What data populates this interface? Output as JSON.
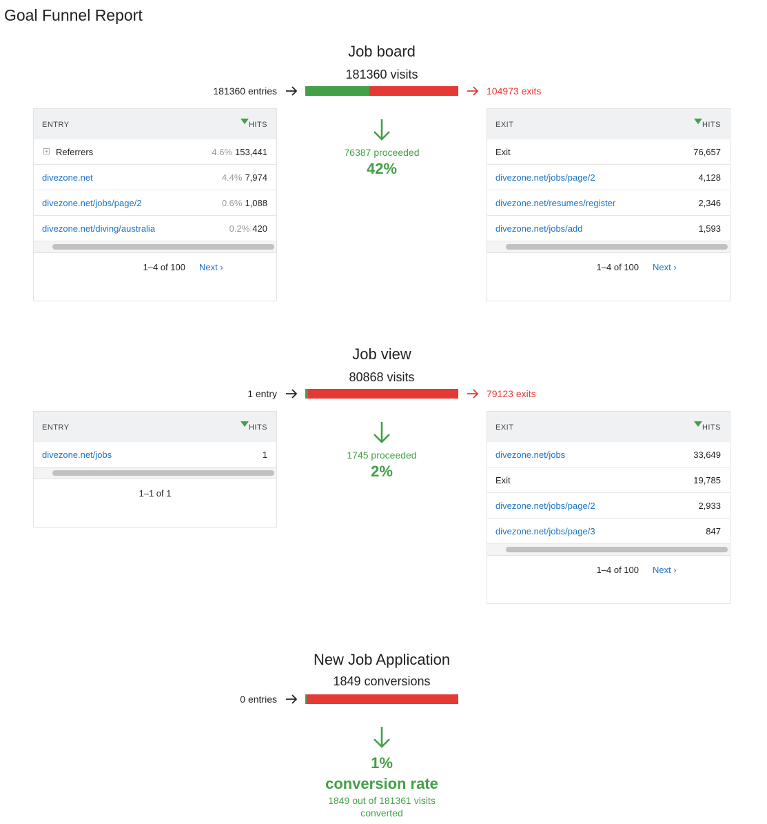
{
  "header": {
    "title": "Goal Funnel Report"
  },
  "steps": [
    {
      "title": "Job board",
      "visits": "181360 visits",
      "entries": "181360 entries",
      "exits": "104973 exits",
      "proceeded": "76387 proceeded",
      "rate": {
        "value": 42,
        "label": "42%"
      },
      "entry_table": {
        "columns": [
          "ENTRY",
          "HITS"
        ],
        "rows": [
          {
            "label": "Referrers",
            "link": false,
            "expandable": true,
            "share": "4.6%",
            "hits": "153,441"
          },
          {
            "label": "divezone.net",
            "link": true,
            "share": "4.4%",
            "hits": "7,974"
          },
          {
            "label": "divezone.net/jobs/page/2",
            "link": true,
            "share": "0.6%",
            "hits": "1,088"
          },
          {
            "label": "divezone.net/diving/australia",
            "link": true,
            "share": "0.2%",
            "hits": "420"
          }
        ],
        "pagination": "1–4 of 100",
        "next": "Next ›"
      },
      "exit_table": {
        "columns": [
          "EXIT",
          "HITS"
        ],
        "rows": [
          {
            "label": "Exit",
            "link": false,
            "hits": "76,657"
          },
          {
            "label": "divezone.net/jobs/page/2",
            "link": true,
            "hits": "4,128"
          },
          {
            "label": "divezone.net/resumes/register",
            "link": true,
            "hits": "2,346"
          },
          {
            "label": "divezone.net/jobs/add",
            "link": true,
            "hits": "1,593"
          }
        ],
        "pagination": "1–4 of 100",
        "next": "Next ›"
      }
    },
    {
      "title": "Job view",
      "visits": "80868 visits",
      "entries": "1 entry",
      "exits": "79123 exits",
      "proceeded": "1745 proceeded",
      "rate": {
        "value": 2,
        "label": "2%"
      },
      "entry_table": {
        "columns": [
          "ENTRY",
          "HITS"
        ],
        "rows": [
          {
            "label": "divezone.net/jobs",
            "link": true,
            "hits": "1"
          }
        ],
        "pagination": "1–1 of 1"
      },
      "exit_table": {
        "columns": [
          "EXIT",
          "HITS"
        ],
        "rows": [
          {
            "label": "divezone.net/jobs",
            "link": true,
            "hits": "33,649"
          },
          {
            "label": "Exit",
            "link": false,
            "hits": "19,785"
          },
          {
            "label": "divezone.net/jobs/page/2",
            "link": true,
            "hits": "2,933"
          },
          {
            "label": "divezone.net/jobs/page/3",
            "link": true,
            "hits": "847"
          }
        ],
        "pagination": "1–4 of 100",
        "next": "Next ›"
      }
    },
    {
      "title": "New Job Application",
      "visits": "1849 conversions",
      "entries": "0 entries",
      "rate": {
        "value": 1,
        "label": "1%"
      },
      "rate_caption": "conversion rate",
      "summary": "1849 out of 181361 visits converted"
    }
  ]
}
